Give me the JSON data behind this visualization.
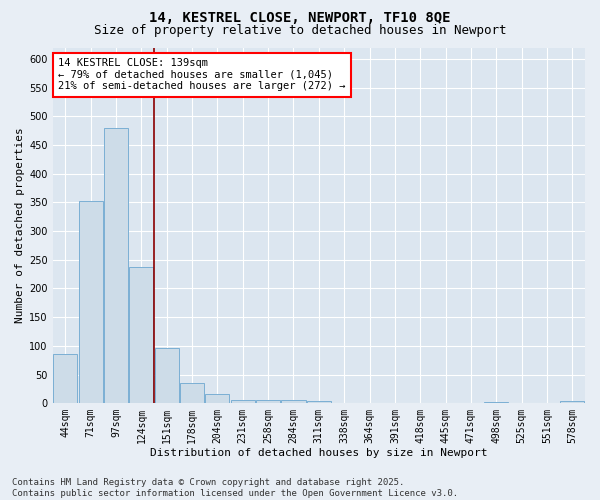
{
  "title_line1": "14, KESTREL CLOSE, NEWPORT, TF10 8QE",
  "title_line2": "Size of property relative to detached houses in Newport",
  "xlabel": "Distribution of detached houses by size in Newport",
  "ylabel": "Number of detached properties",
  "bar_labels": [
    "44sqm",
    "71sqm",
    "97sqm",
    "124sqm",
    "151sqm",
    "178sqm",
    "204sqm",
    "231sqm",
    "258sqm",
    "284sqm",
    "311sqm",
    "338sqm",
    "364sqm",
    "391sqm",
    "418sqm",
    "445sqm",
    "471sqm",
    "498sqm",
    "525sqm",
    "551sqm",
    "578sqm"
  ],
  "bar_values": [
    85,
    352,
    480,
    237,
    96,
    36,
    16,
    6,
    5,
    6,
    4,
    0,
    0,
    0,
    0,
    0,
    0,
    3,
    0,
    0,
    4
  ],
  "bar_color": "#cddce8",
  "bar_edge_color": "#7bafd4",
  "fig_bg_color": "#e8eef5",
  "plot_bg_color": "#dce6f0",
  "grid_color": "#ffffff",
  "redline_color": "#8b0000",
  "ylim_max": 620,
  "yticks": [
    0,
    50,
    100,
    150,
    200,
    250,
    300,
    350,
    400,
    450,
    500,
    550,
    600
  ],
  "annotation_line1": "14 KESTREL CLOSE: 139sqm",
  "annotation_line2": "← 79% of detached houses are smaller (1,045)",
  "annotation_line3": "21% of semi-detached houses are larger (272) →",
  "footer_line1": "Contains HM Land Registry data © Crown copyright and database right 2025.",
  "footer_line2": "Contains public sector information licensed under the Open Government Licence v3.0.",
  "title_fontsize": 10,
  "subtitle_fontsize": 9,
  "axis_label_fontsize": 8,
  "tick_fontsize": 7,
  "annotation_fontsize": 7.5,
  "footer_fontsize": 6.5
}
